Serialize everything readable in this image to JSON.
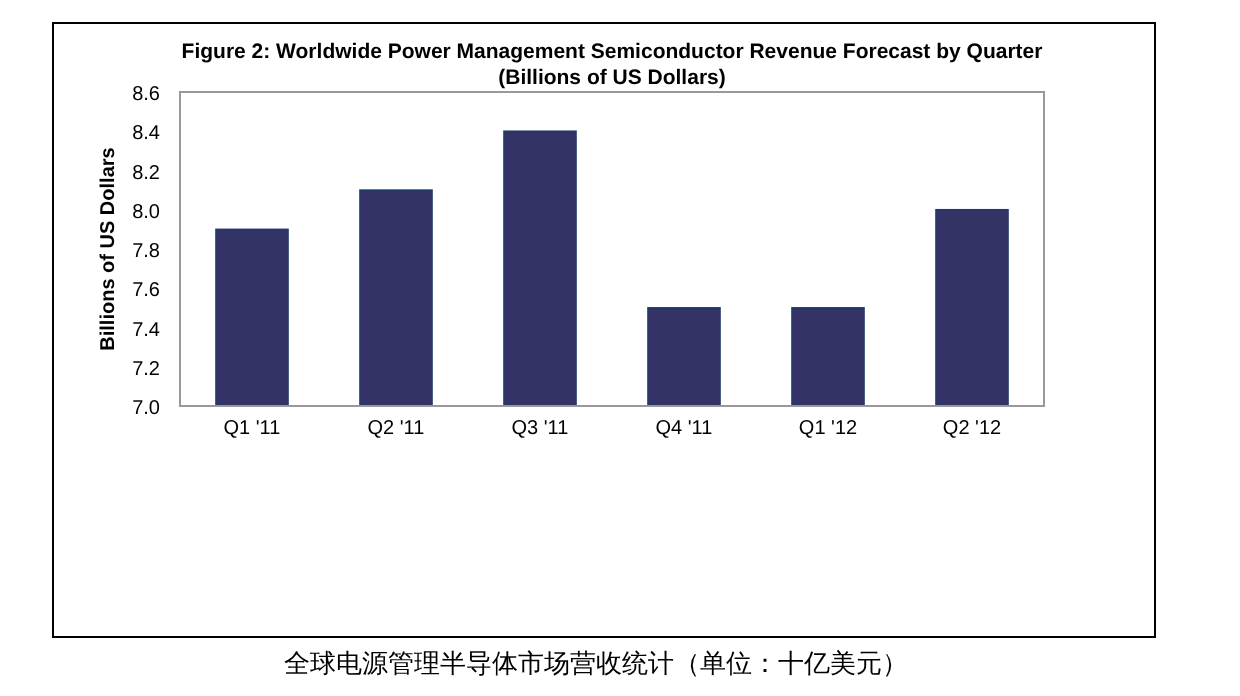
{
  "chart_data": {
    "type": "bar",
    "title": "Figure 2: Worldwide Power Management Semiconductor Revenue Forecast by Quarter",
    "subtitle": "(Billions of US Dollars)",
    "ylabel": "Billions of US Dollars",
    "categories": [
      "Q1 '11",
      "Q2 '11",
      "Q3 '11",
      "Q4 '11",
      "Q1 '12",
      "Q2 '12"
    ],
    "values": [
      7.9,
      8.1,
      8.4,
      7.5,
      7.5,
      8.0
    ],
    "color": "#333366",
    "ylim": [
      7.0,
      8.6
    ],
    "yticks": [
      {
        "value": 7,
        "label": "7.0"
      },
      7.2,
      7.4,
      7.6,
      7.8,
      {
        "value": 8,
        "label": "8.0"
      },
      8.2,
      8.4,
      8.6
    ],
    "grid": false,
    "annotations": [
      "全球电源管理半导体市场营收统计（单位：十亿美元）"
    ]
  }
}
